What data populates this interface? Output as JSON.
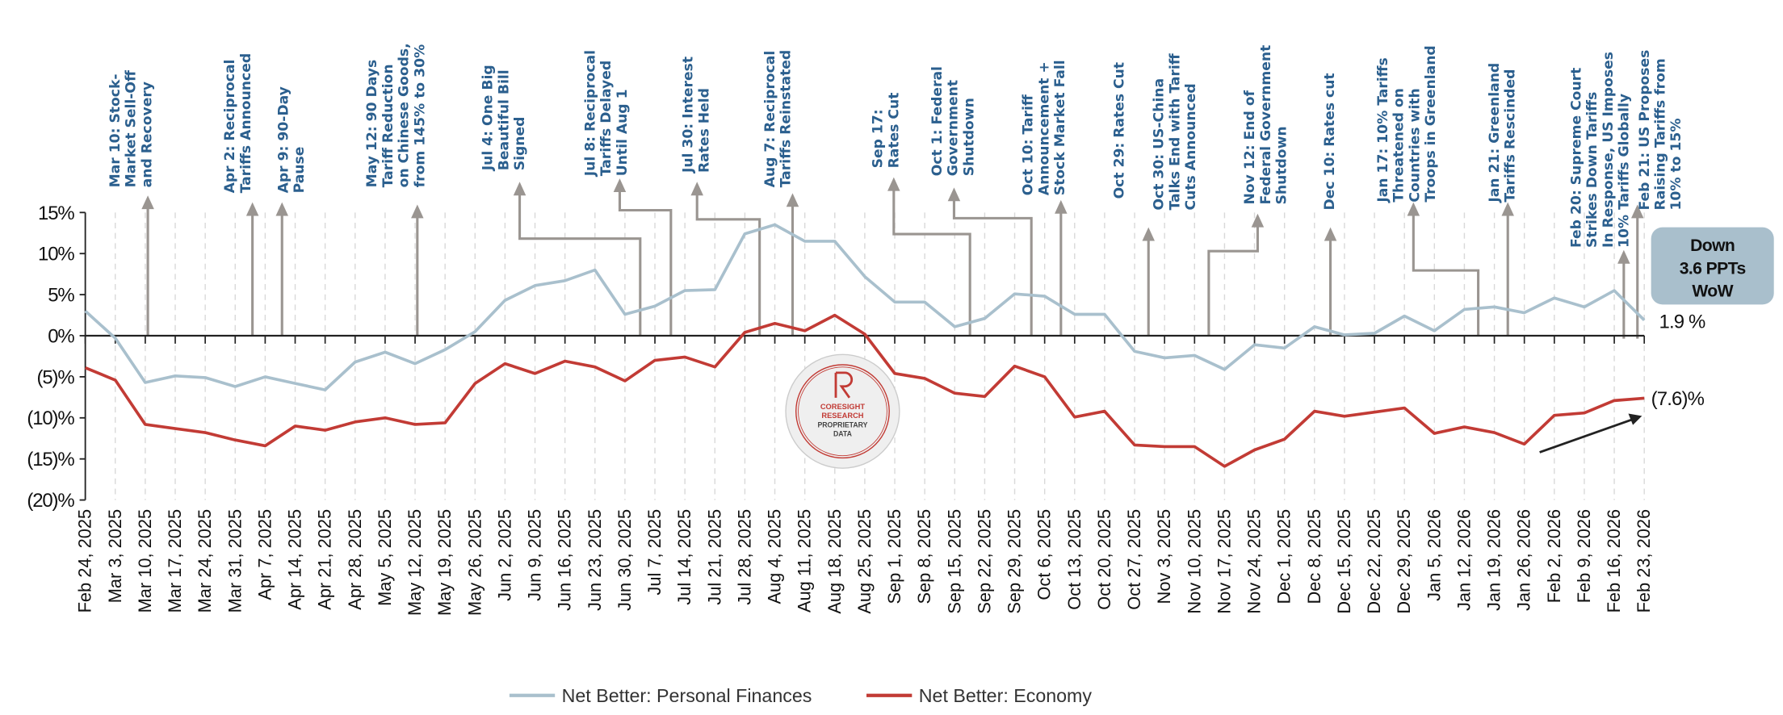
{
  "chart_data": {
    "type": "line",
    "title": "",
    "xlabel": "",
    "ylabel": "",
    "ylim": [
      -20,
      15
    ],
    "yticks": [
      15,
      10,
      5,
      0,
      -5,
      -10,
      -15,
      -20
    ],
    "ytick_labels": [
      "15%",
      "10%",
      "5%",
      "0%",
      "(5)%",
      "(10)%",
      "(15)%",
      "(20)%"
    ],
    "grid": "vertical dashed",
    "legend_position": "bottom",
    "x": [
      "Feb 24, 2025",
      "Mar 3, 2025",
      "Mar 10, 2025",
      "Mar 17, 2025",
      "Mar 24, 2025",
      "Mar 31, 2025",
      "Apr 7, 2025",
      "Apr 14, 2025",
      "Apr 21, 2025",
      "Apr 28, 2025",
      "May 5, 2025",
      "May 12, 2025",
      "May 19, 2025",
      "May 26, 2025",
      "Jun 2, 2025",
      "Jun 9, 2025",
      "Jun 16, 2025",
      "Jun 23, 2025",
      "Jun 30, 2025",
      "Jul 7, 2025",
      "Jul 14, 2025",
      "Jul 21, 2025",
      "Jul 28, 2025",
      "Aug 4, 2025",
      "Aug 11, 2025",
      "Aug 18, 2025",
      "Aug 25, 2025",
      "Sep 1, 2025",
      "Sep 8, 2025",
      "Sep 15, 2025",
      "Sep 22, 2025",
      "Sep 29, 2025",
      "Oct 6, 2025",
      "Oct 13, 2025",
      "Oct 20, 2025",
      "Oct 27, 2025",
      "Nov 3, 2025",
      "Nov 10, 2025",
      "Nov 17, 2025",
      "Nov 24, 2025",
      "Dec 1, 2025",
      "Dec 8, 2025",
      "Dec 15, 2025",
      "Dec 22, 2025",
      "Dec 29, 2025",
      "Jan 5, 2026",
      "Jan 12, 2026",
      "Jan 19, 2026",
      "Jan 26, 2026",
      "Feb 2, 2026",
      "Feb 9, 2026",
      "Feb 16, 2026",
      "Feb 23, 2026"
    ],
    "series": [
      {
        "name": "Net Better: Personal Finances",
        "color": "#a9c0cd",
        "values": [
          3.0,
          -0.3,
          -5.7,
          -4.9,
          -5.1,
          -6.2,
          -5.0,
          -5.8,
          -6.6,
          -3.2,
          -2.0,
          -3.4,
          -1.7,
          0.5,
          4.3,
          6.1,
          6.7,
          8.0,
          2.6,
          3.6,
          5.5,
          5.6,
          12.4,
          13.5,
          11.5,
          11.5,
          7.2,
          4.1,
          4.1,
          1.1,
          2.1,
          5.1,
          4.8,
          2.6,
          2.6,
          -1.9,
          -2.7,
          -2.4,
          -4.1,
          -1.1,
          -1.5,
          1.1,
          0.1,
          0.3,
          2.4,
          0.6,
          3.2,
          3.5,
          2.8,
          4.6,
          3.5,
          5.5,
          1.9
        ]
      },
      {
        "name": "Net Better: Economy",
        "color": "#c23b35",
        "values": [
          -3.9,
          -5.4,
          -10.8,
          -11.3,
          -11.8,
          -12.7,
          -13.4,
          -11.0,
          -11.5,
          -10.5,
          -10.0,
          -10.8,
          -10.6,
          -5.8,
          -3.4,
          -4.6,
          -3.1,
          -3.8,
          -5.5,
          -3.0,
          -2.6,
          -3.8,
          0.4,
          1.5,
          0.6,
          2.5,
          0.2,
          -4.6,
          -5.2,
          -7.0,
          -7.4,
          -3.7,
          -5.0,
          -9.9,
          -9.2,
          -13.3,
          -13.5,
          -13.5,
          -15.9,
          -13.9,
          -12.6,
          -9.2,
          -9.8,
          -9.3,
          -8.8,
          -11.9,
          -11.1,
          -11.8,
          -13.2,
          -9.7,
          -9.4,
          -7.9,
          -7.6
        ]
      }
    ],
    "end_labels": {
      "personal": "1.9 %",
      "economy": "(7.6)%"
    },
    "callout": [
      "Down",
      "3.6 PPTs",
      "WoW"
    ],
    "annotations": [
      {
        "lines": [
          "Mar 10: Stock-",
          "Market Sell-Off",
          "and Recovery"
        ]
      },
      {
        "lines": [
          "Apr 2: Reciprocal",
          "Tariffs Announced"
        ]
      },
      {
        "lines": [
          "Apr 9: 90-Day",
          "Pause"
        ]
      },
      {
        "lines": [
          "May 12: 90 Days",
          "Tariff Reduction",
          "on Chinese Goods,",
          "from 145% to 30%"
        ]
      },
      {
        "lines": [
          "Jul 4: One Big",
          "Beautiful Bill",
          "Signed"
        ]
      },
      {
        "lines": [
          "Jul 8: Reciprocal",
          "Tariffs Delayed",
          "Until Aug 1"
        ]
      },
      {
        "lines": [
          "Jul 30: Interest",
          "Rates Held"
        ]
      },
      {
        "lines": [
          "Aug 7: Reciprocal",
          "Tariffs Reinstated"
        ]
      },
      {
        "lines": [
          "Sep 17:",
          "Rates Cut"
        ]
      },
      {
        "lines": [
          "Oct 1: Federal",
          "Government",
          "Shutdown"
        ]
      },
      {
        "lines": [
          "Oct 10: Tariff",
          "Announcement +",
          "Stock Market Fall"
        ]
      },
      {
        "lines": [
          "Oct 29: Rates Cut"
        ]
      },
      {
        "lines": [
          "Oct 30: US-China",
          "Talks End with Tariff",
          "Cuts Announced"
        ]
      },
      {
        "lines": [
          "Nov 12: End of",
          "Federal Government",
          "Shutdown"
        ]
      },
      {
        "lines": [
          "Dec 10: Rates cut"
        ]
      },
      {
        "lines": [
          "Jan 17: 10% Tariffs",
          "Threatened on",
          "Countries with",
          "Troops in Greenland"
        ]
      },
      {
        "lines": [
          "Jan 21: Greenland",
          "Tariffs Rescinded"
        ]
      },
      {
        "lines": [
          "Feb 20: Supreme Court",
          "Strikes Down Tariffs",
          "In Response, US Imposes",
          "10% Tariffs Globally"
        ]
      },
      {
        "lines": [
          "Feb 21: US Proposes",
          "Raising Tariffs from",
          "10% to 15%"
        ]
      }
    ],
    "watermark": {
      "lines": [
        "CORESIGHT",
        "RESEARCH",
        "PROPRIETARY",
        "DATA"
      ]
    }
  },
  "colors": {
    "annotation_text": "#2b5f8e",
    "arrow": "#9a9591",
    "callout_fill": "#a9bfcc",
    "grid": "#d9d9d9"
  }
}
